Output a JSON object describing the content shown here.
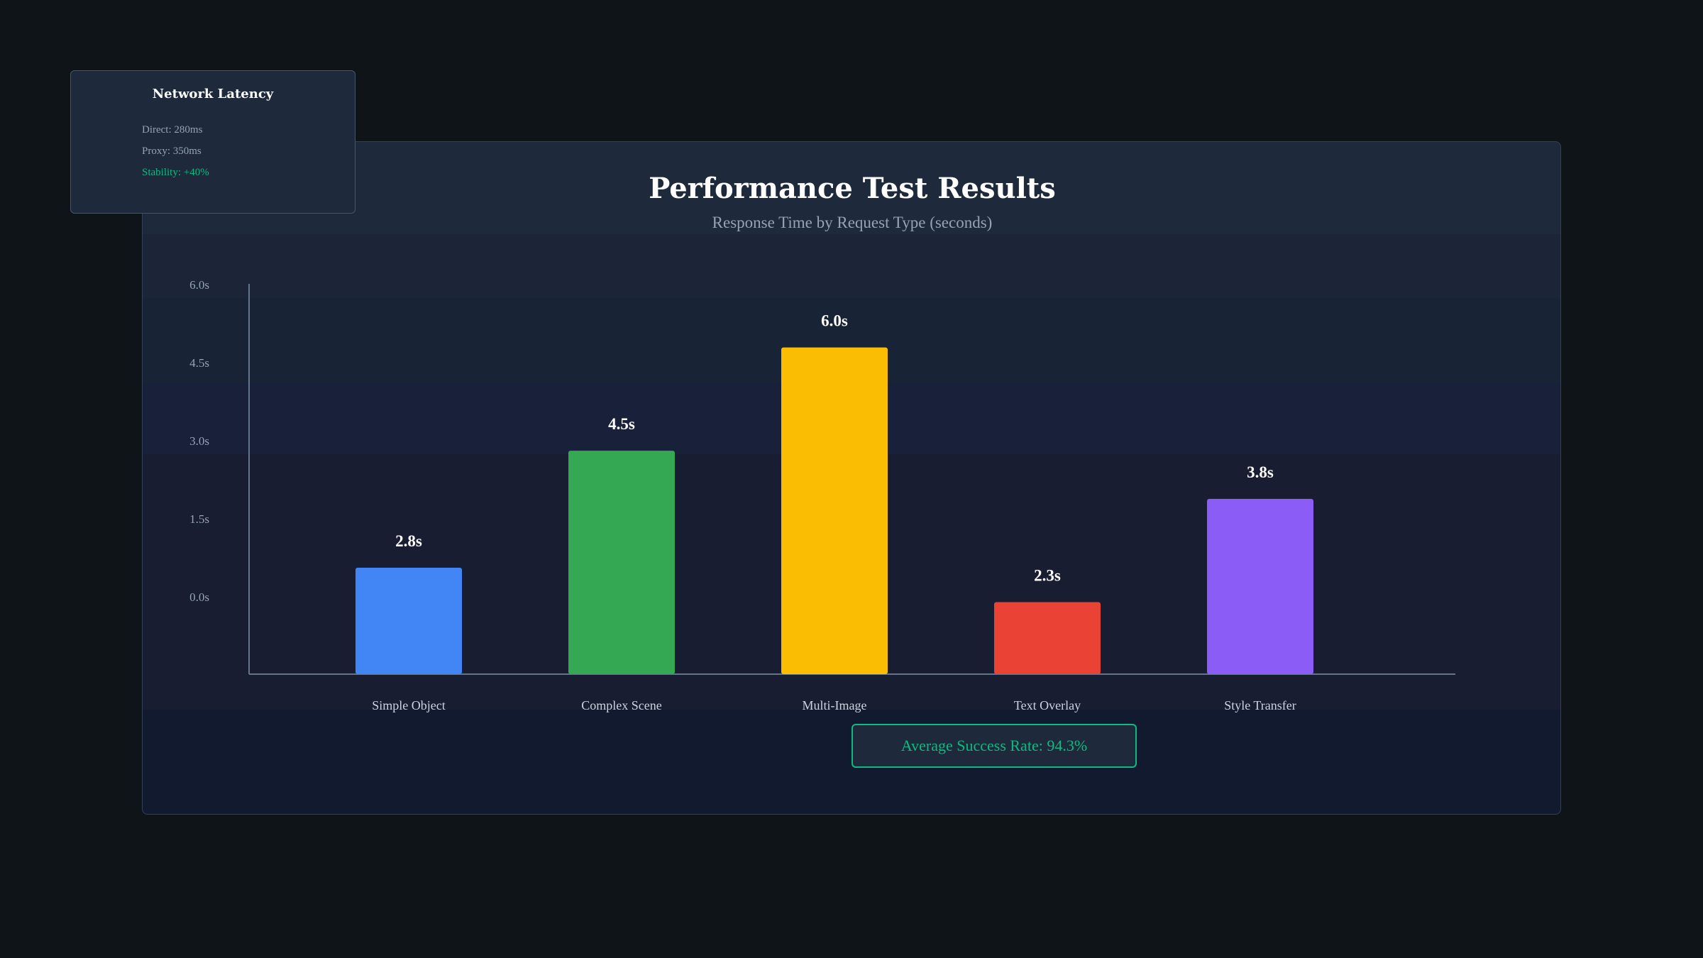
{
  "chart_data": {
    "type": "bar",
    "title": "Performance Test Results",
    "subtitle": "Response Time by Request Type (seconds)",
    "xlabel": "",
    "ylabel": "",
    "categories": [
      "Simple Object",
      "Complex Scene",
      "Multi-Image",
      "Text Overlay",
      "Style Transfer"
    ],
    "values": [
      2.8,
      4.5,
      6.0,
      2.3,
      3.8
    ],
    "value_labels": [
      "2.8s",
      "4.5s",
      "6.0s",
      "2.3s",
      "3.8s"
    ],
    "y_tick_labels": [
      "6.0s",
      "4.5s",
      "3.0s",
      "1.5s",
      "0.0s"
    ],
    "colors": [
      "#4285f4",
      "#34a853",
      "#fbbc04",
      "#ea4335",
      "#8b5cf6"
    ],
    "grid": false,
    "legend": "none"
  },
  "summary": {
    "success_rate_label": "Average Success Rate: 94.3%"
  },
  "latency": {
    "title": "Network Latency",
    "direct": "Direct: 280ms",
    "proxy": "Proxy: 350ms",
    "stability": "Stability: +40%",
    "stability_color": "#10b981"
  }
}
